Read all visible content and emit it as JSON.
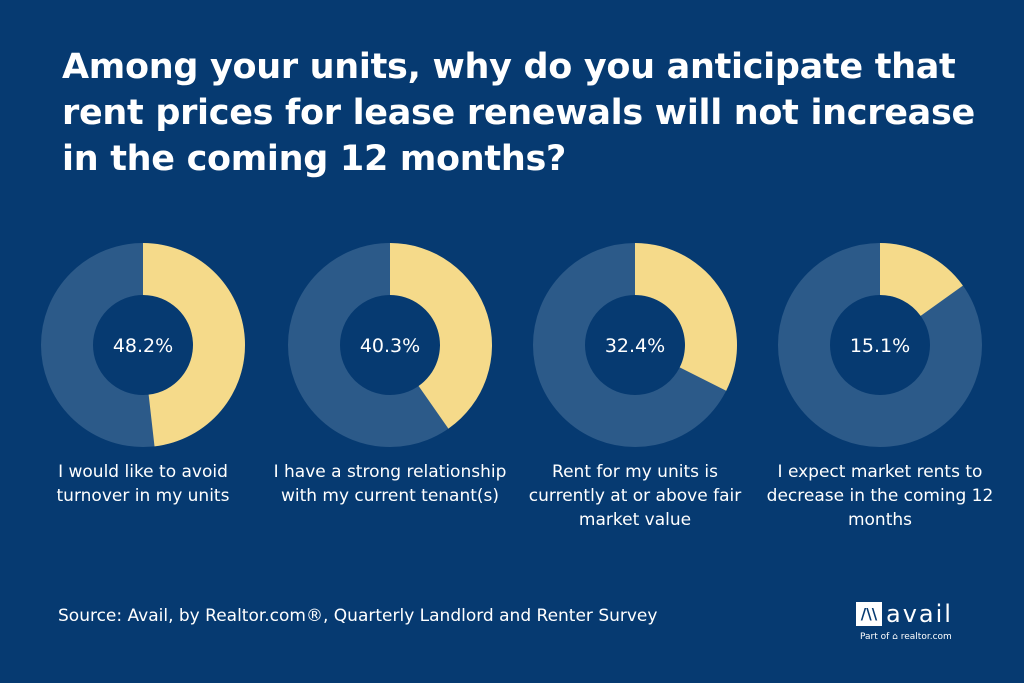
{
  "chart_data": {
    "type": "pie",
    "title": "Among your units, why do you anticipate that rent prices for lease renewals will not increase in the coming 12 months?",
    "series": [
      {
        "label": "I would like to avoid turnover in my units",
        "value": 48.2,
        "display": "48.2%"
      },
      {
        "label": "I have a strong relationship with my current tenant(s)",
        "value": 40.3,
        "display": "40.3%"
      },
      {
        "label": "Rent for my units is currently at or above fair market value",
        "value": 32.4,
        "display": "32.4%"
      },
      {
        "label": "I expect market rents to decrease in the coming 12 months",
        "value": 15.1,
        "display": "15.1%"
      }
    ],
    "colors": {
      "value": "#f5da8a",
      "remainder": "#2c5a89",
      "background": "#063a71"
    }
  },
  "source": "Source: Avail, by Realtor.com®, Quarterly Landlord and Renter Survey",
  "logo": {
    "mark": "/\\\\",
    "word": "avail",
    "part_of": "Part of ⌂ realtor.com"
  }
}
